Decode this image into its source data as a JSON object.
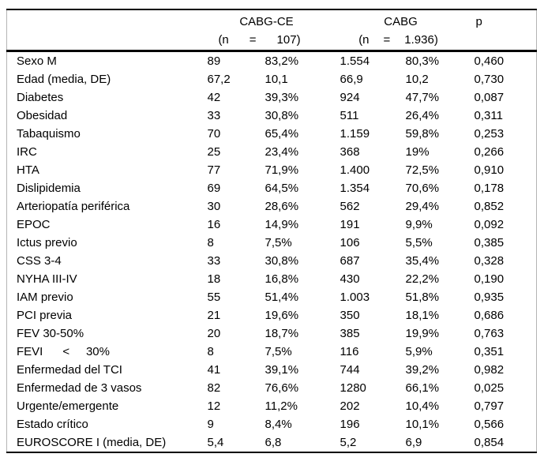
{
  "colors": {
    "background": "#ffffff",
    "text": "#000000",
    "rule": "#000000",
    "side_border": "#b4b4b4"
  },
  "table": {
    "header": {
      "group1": {
        "title": "CABG-CE",
        "sub_parts": [
          "(n",
          "=",
          "107)"
        ]
      },
      "group2": {
        "title": "CABG",
        "sub_parts": [
          "(n",
          "=",
          "1.936)"
        ]
      },
      "p_label": "p"
    },
    "rows": [
      {
        "label": "Sexo M",
        "n1": "89",
        "pct1": "83,2%",
        "n2": "1.554",
        "pct2": "80,3%",
        "p": "0,460"
      },
      {
        "label": "Edad (media, DE)",
        "n1": "67,2",
        "pct1": "10,1",
        "n2": "66,9",
        "pct2": "10,2",
        "p": "0,730"
      },
      {
        "label": "Diabetes",
        "n1": "42",
        "pct1": "39,3%",
        "n2": "924",
        "pct2": "47,7%",
        "p": "0,087"
      },
      {
        "label": "Obesidad",
        "n1": "33",
        "pct1": "30,8%",
        "n2": "511",
        "pct2": "26,4%",
        "p": "0,311"
      },
      {
        "label": "Tabaquismo",
        "n1": "70",
        "pct1": "65,4%",
        "n2": "1.159",
        "pct2": "59,8%",
        "p": "0,253"
      },
      {
        "label": "IRC",
        "n1": "25",
        "pct1": "23,4%",
        "n2": "368",
        "pct2": "19%",
        "p": "0,266"
      },
      {
        "label": "HTA",
        "n1": "77",
        "pct1": "71,9%",
        "n2": "1.400",
        "pct2": "72,5%",
        "p": "0,910"
      },
      {
        "label": "Dislipidemia",
        "n1": "69",
        "pct1": "64,5%",
        "n2": "1.354",
        "pct2": "70,6%",
        "p": "0,178"
      },
      {
        "label": "Arteriopatía periférica",
        "n1": "30",
        "pct1": "28,6%",
        "n2": "562",
        "pct2": "29,4%",
        "p": "0,852"
      },
      {
        "label": "EPOC",
        "n1": "16",
        "pct1": "14,9%",
        "n2": "191",
        "pct2": "9,9%",
        "p": "0,092"
      },
      {
        "label": "Ictus previo",
        "n1": "8",
        "pct1": "7,5%",
        "n2": "106",
        "pct2": "5,5%",
        "p": "0,385"
      },
      {
        "label": "CSS 3-4",
        "n1": "33",
        "pct1": "30,8%",
        "n2": "687",
        "pct2": "35,4%",
        "p": "0,328"
      },
      {
        "label": "NYHA III-IV",
        "n1": "18",
        "pct1": "16,8%",
        "n2": "430",
        "pct2": "22,2%",
        "p": "0,190"
      },
      {
        "label": "IAM previo",
        "n1": "55",
        "pct1": "51,4%",
        "n2": "1.003",
        "pct2": "51,8%",
        "p": "0,935"
      },
      {
        "label": "PCI previa",
        "n1": "21",
        "pct1": "19,6%",
        "n2": "350",
        "pct2": "18,1%",
        "p": "0,686"
      },
      {
        "label": "FEV 30-50%",
        "n1": "20",
        "pct1": "18,7%",
        "n2": "385",
        "pct2": "19,9%",
        "p": "0,763"
      },
      {
        "label": "FEVI      <     30%",
        "n1": "8",
        "pct1": "7,5%",
        "n2": "116",
        "pct2": "5,9%",
        "p": "0,351"
      },
      {
        "label": "Enfermedad del TCI",
        "n1": "41",
        "pct1": "39,1%",
        "n2": "744",
        "pct2": "39,2%",
        "p": "0,982"
      },
      {
        "label": "Enfermedad de 3 vasos",
        "n1": "82",
        "pct1": "76,6%",
        "n2": "1280",
        "pct2": "66,1%",
        "p": "0,025"
      },
      {
        "label": "Urgente/emergente",
        "n1": "12",
        "pct1": "11,2%",
        "n2": "202",
        "pct2": "10,4%",
        "p": "0,797"
      },
      {
        "label": "Estado crítico",
        "n1": "9",
        "pct1": "8,4%",
        "n2": "196",
        "pct2": "10,1%",
        "p": "0,566"
      },
      {
        "label": "EUROSCORE I (media, DE)",
        "n1": "5,4",
        "pct1": "6,8",
        "n2": "5,2",
        "pct2": "6,9",
        "p": "0,854"
      }
    ]
  }
}
